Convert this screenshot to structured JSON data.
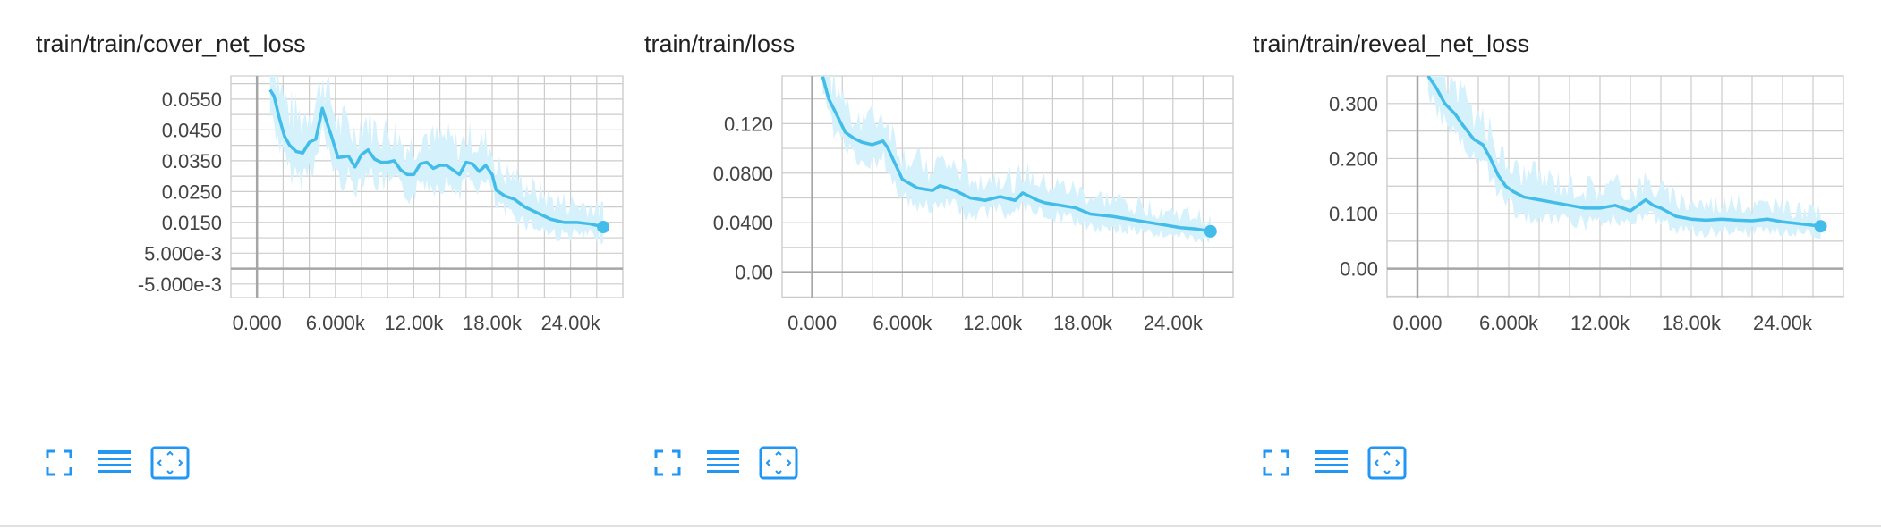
{
  "accent_color": "#42bce8",
  "band_color": "#d5f1fb",
  "grid_color": "#cccccc",
  "axis_zero_color": "#a6a6a6",
  "toolbar": {
    "expand_icon": "fullscreen-icon",
    "data_icon": "list-icon",
    "fit_icon": "fit-domain-icon",
    "icon_color": "#2196f3"
  },
  "chart_data": [
    {
      "type": "line",
      "title": "train/train/cover_net_loss",
      "xlim": [
        -2000,
        28000
      ],
      "ylim": [
        -0.0094,
        0.0625
      ],
      "x_ticks": [
        0,
        6000,
        12000,
        18000,
        24000
      ],
      "x_tick_labels": [
        "0.000",
        "6.000k",
        "12.00k",
        "18.00k",
        "24.00k"
      ],
      "y_ticks": [
        -0.005,
        0.005,
        0.015,
        0.025,
        0.035,
        0.045,
        0.055
      ],
      "y_tick_labels": [
        "-5.000e-3",
        "5.000e-3",
        "0.0150",
        "0.0250",
        "0.0350",
        "0.0450",
        "0.0550"
      ],
      "grid": true,
      "series": [
        {
          "smoothed": true,
          "x": [
            1000,
            1300,
            1700,
            2100,
            2500,
            3000,
            3500,
            4000,
            4500,
            5000,
            5300,
            5700,
            6200,
            7000,
            7500,
            8000,
            8500,
            9000,
            9500,
            10000,
            10500,
            11000,
            11500,
            12000,
            12500,
            13000,
            13500,
            14000,
            14500,
            15000,
            15500,
            16000,
            16500,
            17000,
            17500,
            18000,
            18300,
            19000,
            19700,
            20500,
            21500,
            22500,
            23500,
            24500,
            25500,
            26500
          ],
          "y": [
            0.058,
            0.056,
            0.049,
            0.043,
            0.04,
            0.038,
            0.0375,
            0.041,
            0.042,
            0.052,
            0.048,
            0.043,
            0.036,
            0.0365,
            0.033,
            0.037,
            0.0385,
            0.0355,
            0.0345,
            0.0345,
            0.035,
            0.032,
            0.0305,
            0.0305,
            0.034,
            0.0345,
            0.0325,
            0.0335,
            0.0335,
            0.032,
            0.0305,
            0.0345,
            0.034,
            0.0315,
            0.0335,
            0.0305,
            0.0255,
            0.0235,
            0.0225,
            0.02,
            0.018,
            0.016,
            0.015,
            0.015,
            0.0145,
            0.0135
          ]
        }
      ],
      "band_amplitude": 0.012,
      "end_marker": {
        "x": 26500,
        "y": 0.0135
      }
    },
    {
      "type": "line",
      "title": "train/train/loss",
      "xlim": [
        -2000,
        28000
      ],
      "ylim": [
        -0.0205,
        0.1585
      ],
      "x_ticks": [
        0,
        6000,
        12000,
        18000,
        24000
      ],
      "x_tick_labels": [
        "0.000",
        "6.000k",
        "12.00k",
        "18.00k",
        "24.00k"
      ],
      "y_ticks": [
        0,
        0.04,
        0.08,
        0.12
      ],
      "y_tick_labels": [
        "0.00",
        "0.0400",
        "0.0800",
        "0.120"
      ],
      "grid": true,
      "series": [
        {
          "smoothed": true,
          "x": [
            700,
            1100,
            1600,
            2200,
            2800,
            3300,
            4000,
            4700,
            5000,
            5500,
            6000,
            7000,
            8000,
            8500,
            9500,
            10500,
            11500,
            12500,
            13500,
            14000,
            15000,
            15500,
            16500,
            17500,
            18500,
            20000,
            21500,
            22500,
            23500,
            24500,
            25500,
            26500
          ],
          "y": [
            0.158,
            0.14,
            0.128,
            0.113,
            0.108,
            0.105,
            0.103,
            0.106,
            0.101,
            0.088,
            0.075,
            0.068,
            0.066,
            0.07,
            0.066,
            0.06,
            0.058,
            0.061,
            0.058,
            0.064,
            0.058,
            0.056,
            0.054,
            0.052,
            0.047,
            0.045,
            0.042,
            0.04,
            0.038,
            0.036,
            0.035,
            0.033
          ]
        }
      ],
      "band_amplitude": 0.022,
      "end_marker": {
        "x": 26500,
        "y": 0.033
      }
    },
    {
      "type": "line",
      "title": "train/train/reveal_net_loss",
      "xlim": [
        -2000,
        28000
      ],
      "ylim": [
        -0.0525,
        0.35
      ],
      "x_ticks": [
        0,
        6000,
        12000,
        18000,
        24000
      ],
      "x_tick_labels": [
        "0.000",
        "6.000k",
        "12.00k",
        "18.00k",
        "24.00k"
      ],
      "y_ticks": [
        0,
        0.1,
        0.2,
        0.3
      ],
      "y_tick_labels": [
        "0.00",
        "0.100",
        "0.200",
        "0.300"
      ],
      "grid": true,
      "series": [
        {
          "smoothed": true,
          "x": [
            700,
            1200,
            1800,
            2500,
            3000,
            3700,
            4300,
            4800,
            5300,
            5800,
            6300,
            7000,
            8000,
            9000,
            10000,
            11000,
            12000,
            13000,
            14000,
            15000,
            15500,
            16000,
            17000,
            18000,
            19000,
            20000,
            21000,
            22000,
            23000,
            24000,
            25000,
            26500
          ],
          "y": [
            0.35,
            0.33,
            0.3,
            0.28,
            0.26,
            0.235,
            0.225,
            0.2,
            0.17,
            0.15,
            0.14,
            0.13,
            0.125,
            0.12,
            0.115,
            0.11,
            0.11,
            0.115,
            0.105,
            0.125,
            0.115,
            0.11,
            0.095,
            0.09,
            0.088,
            0.09,
            0.088,
            0.087,
            0.09,
            0.085,
            0.082,
            0.077
          ]
        }
      ],
      "band_amplitude": 0.05,
      "end_marker": {
        "x": 26500,
        "y": 0.077
      }
    }
  ]
}
